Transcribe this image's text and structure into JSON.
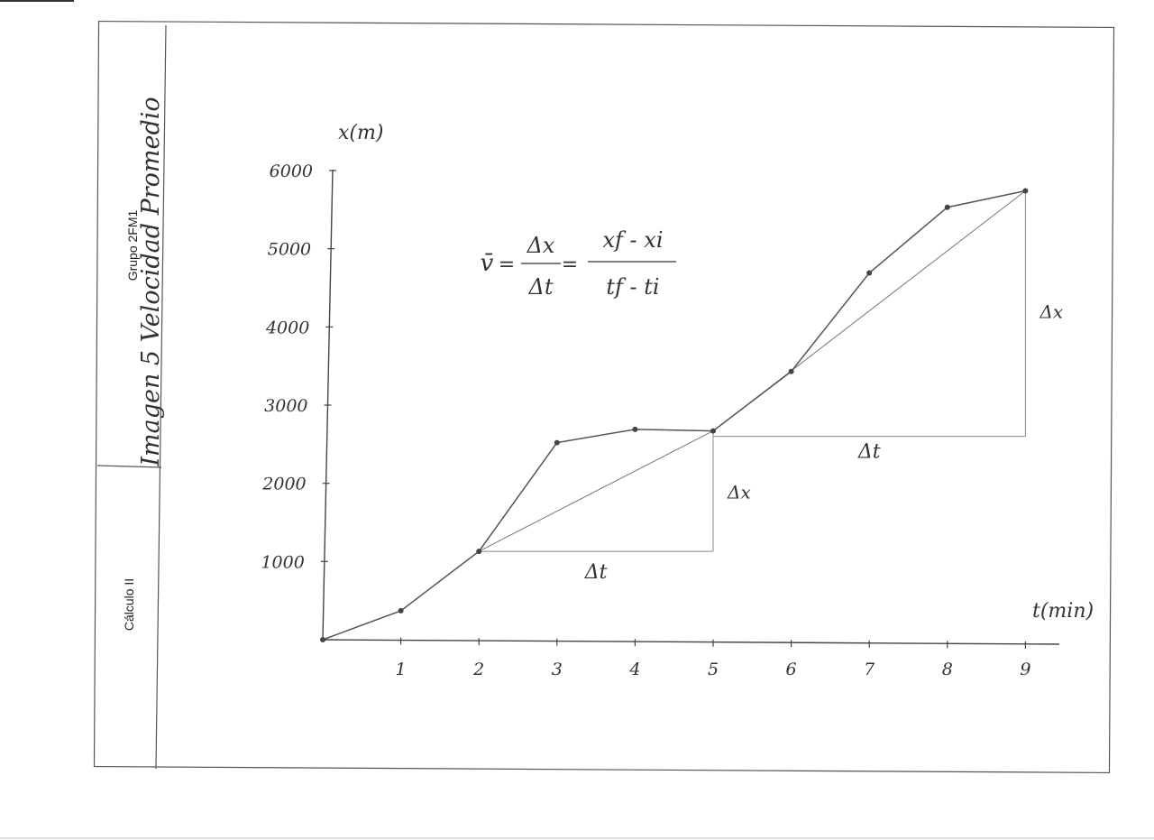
{
  "sheet": {
    "group_label": "Grupo 2FM1",
    "subject_label": "Cálculo II",
    "handwritten_title": "Imagen 5 Velocidad Promedio"
  },
  "chart_data": {
    "type": "line",
    "title": "",
    "xlabel": "t(min)",
    "ylabel": "x(m)",
    "xlim": [
      0,
      9.5
    ],
    "ylim": [
      0,
      6000
    ],
    "x_ticks": [
      1,
      2,
      3,
      4,
      5,
      6,
      7,
      8,
      9
    ],
    "y_ticks": [
      1000,
      2000,
      3000,
      4000,
      5000,
      6000
    ],
    "x_tick_labels": [
      "1",
      "2",
      "3",
      "4",
      "5",
      "6",
      "7",
      "8",
      "9"
    ],
    "y_tick_labels": [
      "1000",
      "2000",
      "3000",
      "4000",
      "5000",
      "6000"
    ],
    "grid": false,
    "series": [
      {
        "x": [
          0,
          1,
          2,
          3,
          4,
          5,
          6,
          7,
          8,
          9
        ],
        "values": [
          0,
          370,
          1130,
          2520,
          2690,
          2670,
          3430,
          4690,
          5530,
          5740
        ]
      }
    ],
    "secants": [
      {
        "from": [
          2,
          1130
        ],
        "to": [
          5,
          2670
        ],
        "dx_label": "Δx",
        "dt_label": "Δt"
      },
      {
        "from": [
          5,
          2670
        ],
        "to": [
          9,
          5740
        ],
        "dx_label": "Δx",
        "dt_label": "Δt"
      }
    ],
    "formula": {
      "lhs": "v̄",
      "eq1": "=",
      "num1": "Δx",
      "den1": "Δt",
      "eq2": "=",
      "num2": "xf - xi",
      "den2": "tf - ti"
    }
  }
}
